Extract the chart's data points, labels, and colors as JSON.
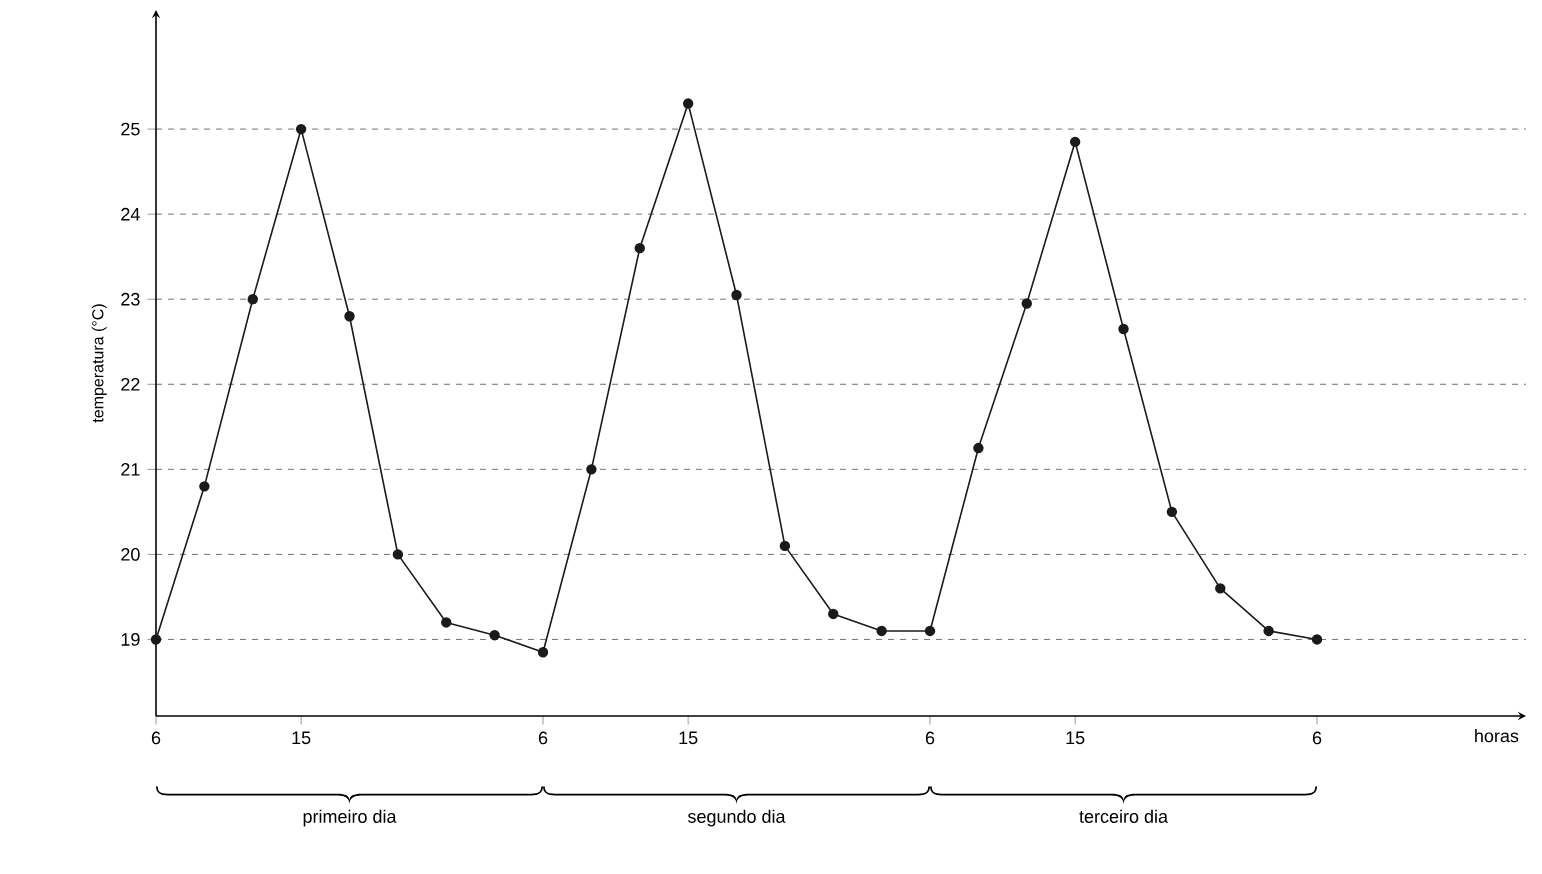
{
  "chart_data": {
    "type": "line",
    "ylabel": "temperatura (°C)",
    "categories": [
      "6",
      null,
      null,
      "15",
      null,
      null,
      null,
      null,
      "6",
      null,
      null,
      "15",
      null,
      null,
      null,
      null,
      "6",
      null,
      null,
      "15",
      null,
      null,
      null,
      null,
      "6"
    ],
    "series": [
      {
        "color": "#1a1a1a",
        "values": [
          19.0,
          20.8,
          23.0,
          25.0,
          22.8,
          20.0,
          19.2,
          19.05,
          18.85,
          21.0,
          23.6,
          25.3,
          23.05,
          20.1,
          19.3,
          19.1,
          19.1,
          21.25,
          22.95,
          24.85,
          22.65,
          20.5,
          19.6,
          19.1,
          19.0
        ]
      }
    ],
    "ylim": [
      18.1,
      26.4
    ],
    "yticks": [
      19,
      20,
      21,
      22,
      23,
      24,
      25
    ],
    "grid": "y",
    "marker": "circle",
    "line_style": "solid",
    "annotations": [
      "horas",
      "primeiro dia",
      "segundo dia",
      "terceiro dia"
    ]
  }
}
